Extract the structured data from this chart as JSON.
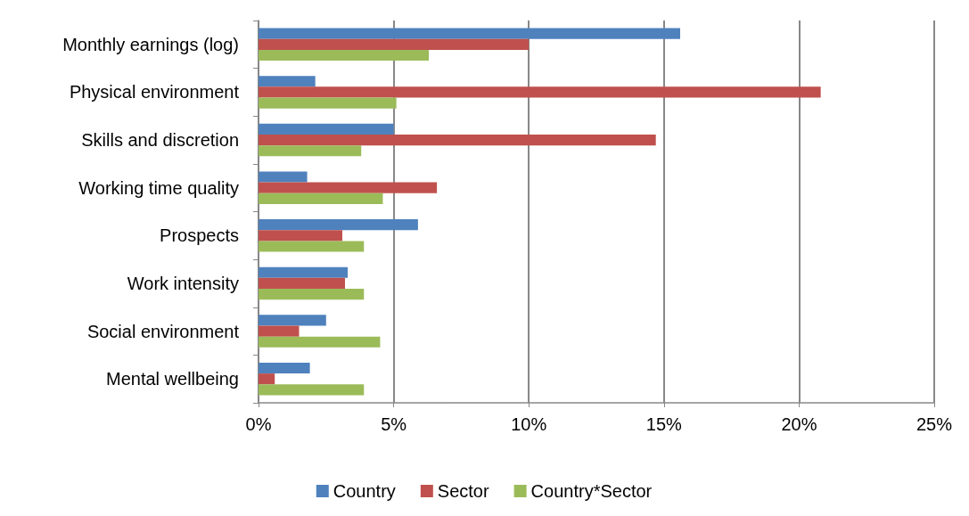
{
  "chart_data": {
    "type": "bar",
    "orientation": "horizontal",
    "categories": [
      "Monthly earnings (log)",
      "Physical environment",
      "Skills and discretion",
      "Working time quality",
      "Prospects",
      "Work intensity",
      "Social environment",
      "Mental wellbeing"
    ],
    "series": [
      {
        "name": "Country",
        "color": "#4f81bd",
        "values": [
          15.6,
          2.1,
          5.0,
          1.8,
          5.9,
          3.3,
          2.5,
          1.9
        ]
      },
      {
        "name": "Sector",
        "color": "#c0504d",
        "values": [
          10.0,
          20.8,
          14.7,
          6.6,
          3.1,
          3.2,
          1.5,
          0.6
        ]
      },
      {
        "name": "Country*Sector",
        "color": "#9bbb59",
        "values": [
          6.3,
          5.1,
          3.8,
          4.6,
          3.9,
          3.9,
          4.5,
          3.9
        ]
      }
    ],
    "xlim": [
      0,
      25
    ],
    "xticks": [
      {
        "value": 0,
        "label": "0%"
      },
      {
        "value": 5,
        "label": "5%"
      },
      {
        "value": 10,
        "label": "10%"
      },
      {
        "value": 15,
        "label": "15%"
      },
      {
        "value": 20,
        "label": "20%"
      },
      {
        "value": 25,
        "label": "25%"
      }
    ],
    "grid": "x",
    "legend": "bottom"
  }
}
